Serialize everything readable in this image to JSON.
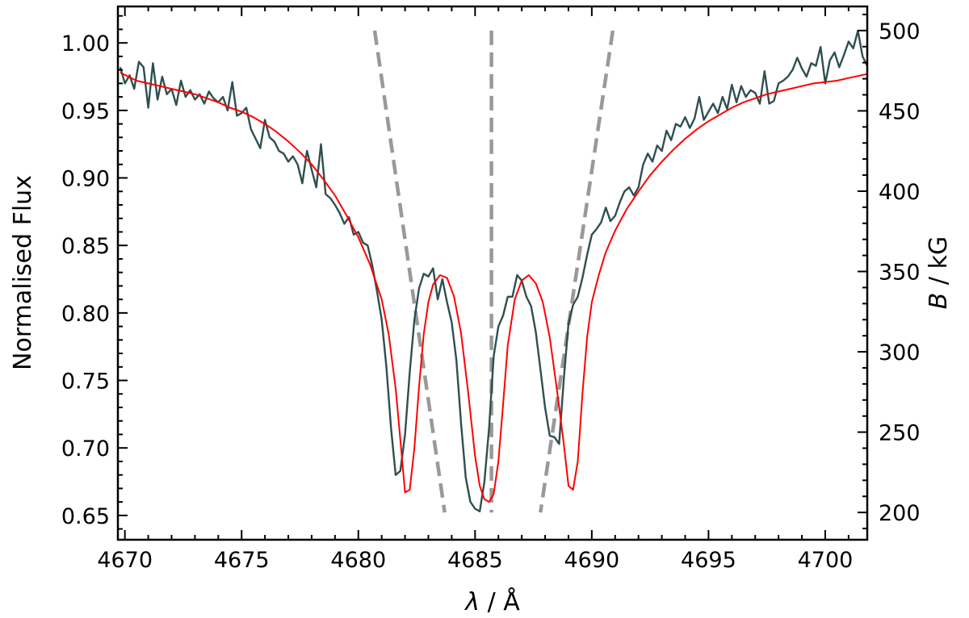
{
  "chart_data": {
    "type": "line",
    "xlabel": "λ / Å",
    "ylabel": "Normalised Flux",
    "y2label": "B / kG",
    "xlim": [
      4669.7,
      4701.8
    ],
    "ylim": [
      0.632,
      1.027
    ],
    "y2lim": [
      183,
      515
    ],
    "xticks": [
      "4670",
      "4675",
      "4680",
      "4685",
      "4690",
      "4695",
      "4700"
    ],
    "yticks": [
      "0.65",
      "0.70",
      "0.75",
      "0.80",
      "0.85",
      "0.90",
      "0.95",
      "1.00"
    ],
    "y2ticks": [
      "200",
      "250",
      "300",
      "350",
      "400",
      "450",
      "500"
    ],
    "grid": false,
    "colors": {
      "observed": "#2f4f4f",
      "model": "#ff0000",
      "field": "#999999"
    },
    "series": [
      {
        "kind": "observed",
        "axis": "left",
        "x": [
          4669.8,
          4670.0,
          4670.2,
          4670.4,
          4670.6,
          4670.8,
          4671.0,
          4671.2,
          4671.4,
          4671.6,
          4671.8,
          4672.0,
          4672.2,
          4672.4,
          4672.6,
          4672.8,
          4673.0,
          4673.2,
          4673.4,
          4673.6,
          4673.8,
          4674.0,
          4674.2,
          4674.4,
          4674.6,
          4674.8,
          4675.0,
          4675.2,
          4675.4,
          4675.6,
          4675.8,
          4676.0,
          4676.2,
          4676.4,
          4676.6,
          4676.8,
          4677.0,
          4677.2,
          4677.4,
          4677.6,
          4677.8,
          4678.0,
          4678.2,
          4678.4,
          4678.6,
          4678.8,
          4679.0,
          4679.2,
          4679.4,
          4679.6,
          4679.8,
          4680.0,
          4680.2,
          4680.4,
          4680.6,
          4680.8,
          4681.0,
          4681.2,
          4681.4,
          4681.6,
          4681.8,
          4682.0,
          4682.2,
          4682.4,
          4682.6,
          4682.8,
          4683.0,
          4683.2,
          4683.4,
          4683.6,
          4683.8,
          4684.0,
          4684.2,
          4684.4,
          4684.6,
          4684.8,
          4685.0,
          4685.2,
          4685.4,
          4685.6,
          4685.8,
          4686.0,
          4686.2,
          4686.4,
          4686.6,
          4686.8,
          4687.0,
          4687.2,
          4687.4,
          4687.6,
          4687.8,
          4688.0,
          4688.2,
          4688.4,
          4688.6,
          4688.8,
          4689.0,
          4689.2,
          4689.4,
          4689.6,
          4689.8,
          4690.0,
          4690.2,
          4690.4,
          4690.6,
          4690.8,
          4691.0,
          4691.2,
          4691.4,
          4691.6,
          4691.8,
          4692.0,
          4692.2,
          4692.4,
          4692.6,
          4692.8,
          4693.0,
          4693.2,
          4693.4,
          4693.6,
          4693.8,
          4694.0,
          4694.2,
          4694.4,
          4694.6,
          4694.8,
          4695.0,
          4695.2,
          4695.4,
          4695.6,
          4695.8,
          4696.0,
          4696.2,
          4696.4,
          4696.6,
          4696.8,
          4697.0,
          4697.2,
          4697.4,
          4697.6,
          4697.8,
          4698.0,
          4698.2,
          4698.4,
          4698.6,
          4698.8,
          4699.0,
          4699.2,
          4699.4,
          4699.6,
          4699.8,
          4700.0,
          4700.2,
          4700.4,
          4700.6,
          4700.8,
          4701.0,
          4701.2,
          4701.4,
          4701.6,
          4701.8
        ],
        "y": [
          0.982,
          0.97,
          0.976,
          0.966,
          0.986,
          0.982,
          0.952,
          0.985,
          0.958,
          0.975,
          0.962,
          0.966,
          0.954,
          0.972,
          0.96,
          0.965,
          0.958,
          0.962,
          0.955,
          0.964,
          0.959,
          0.956,
          0.96,
          0.95,
          0.971,
          0.946,
          0.948,
          0.952,
          0.936,
          0.929,
          0.922,
          0.943,
          0.93,
          0.927,
          0.92,
          0.918,
          0.912,
          0.916,
          0.91,
          0.896,
          0.92,
          0.906,
          0.893,
          0.925,
          0.888,
          0.885,
          0.88,
          0.874,
          0.866,
          0.871,
          0.858,
          0.86,
          0.852,
          0.85,
          0.835,
          0.816,
          0.795,
          0.76,
          0.715,
          0.68,
          0.683,
          0.71,
          0.756,
          0.795,
          0.818,
          0.829,
          0.827,
          0.833,
          0.81,
          0.825,
          0.808,
          0.793,
          0.765,
          0.718,
          0.678,
          0.66,
          0.655,
          0.653,
          0.675,
          0.715,
          0.768,
          0.79,
          0.798,
          0.812,
          0.812,
          0.828,
          0.824,
          0.812,
          0.805,
          0.786,
          0.758,
          0.73,
          0.709,
          0.708,
          0.703,
          0.751,
          0.792,
          0.806,
          0.812,
          0.826,
          0.843,
          0.858,
          0.862,
          0.867,
          0.878,
          0.868,
          0.872,
          0.882,
          0.89,
          0.893,
          0.887,
          0.893,
          0.91,
          0.918,
          0.912,
          0.924,
          0.92,
          0.935,
          0.928,
          0.94,
          0.938,
          0.945,
          0.937,
          0.944,
          0.96,
          0.943,
          0.949,
          0.955,
          0.948,
          0.96,
          0.951,
          0.969,
          0.956,
          0.968,
          0.96,
          0.965,
          0.963,
          0.955,
          0.979,
          0.955,
          0.957,
          0.97,
          0.972,
          0.975,
          0.98,
          0.989,
          0.981,
          0.975,
          0.985,
          0.983,
          0.997,
          0.97,
          0.987,
          0.993,
          0.982,
          0.991,
          1.001,
          0.996,
          1.009,
          0.99,
          0.983
        ]
      },
      {
        "kind": "model",
        "axis": "left",
        "x": [
          4669.8,
          4670.5,
          4671.0,
          4671.5,
          4672.0,
          4672.5,
          4673.0,
          4673.5,
          4674.0,
          4674.5,
          4675.0,
          4675.5,
          4676.0,
          4676.5,
          4677.0,
          4677.5,
          4678.0,
          4678.5,
          4679.0,
          4679.5,
          4680.0,
          4680.5,
          4681.0,
          4681.3,
          4681.6,
          4681.8,
          4682.0,
          4682.2,
          4682.4,
          4682.6,
          4682.8,
          4683.0,
          4683.2,
          4683.5,
          4683.8,
          4684.1,
          4684.4,
          4684.7,
          4685.0,
          4685.2,
          4685.4,
          4685.6,
          4685.8,
          4686.0,
          4686.2,
          4686.4,
          4686.7,
          4687.0,
          4687.3,
          4687.6,
          4687.9,
          4688.2,
          4688.5,
          4688.8,
          4689.0,
          4689.2,
          4689.4,
          4689.6,
          4689.8,
          4690.0,
          4690.3,
          4690.6,
          4691.0,
          4691.5,
          4692.0,
          4692.5,
          4693.0,
          4693.5,
          4694.0,
          4694.5,
          4695.0,
          4695.5,
          4696.0,
          4696.5,
          4697.0,
          4697.5,
          4698.0,
          4698.5,
          4699.0,
          4699.5,
          4700.0,
          4700.5,
          4701.0,
          4701.8
        ],
        "y": [
          0.978,
          0.972,
          0.97,
          0.968,
          0.966,
          0.964,
          0.962,
          0.959,
          0.956,
          0.952,
          0.949,
          0.945,
          0.94,
          0.934,
          0.927,
          0.919,
          0.91,
          0.899,
          0.887,
          0.872,
          0.856,
          0.836,
          0.81,
          0.784,
          0.744,
          0.706,
          0.667,
          0.669,
          0.7,
          0.745,
          0.784,
          0.808,
          0.821,
          0.828,
          0.826,
          0.812,
          0.785,
          0.742,
          0.694,
          0.672,
          0.662,
          0.66,
          0.666,
          0.69,
          0.732,
          0.776,
          0.81,
          0.824,
          0.828,
          0.822,
          0.808,
          0.782,
          0.744,
          0.703,
          0.672,
          0.669,
          0.69,
          0.74,
          0.782,
          0.808,
          0.828,
          0.845,
          0.861,
          0.877,
          0.89,
          0.902,
          0.912,
          0.921,
          0.929,
          0.936,
          0.942,
          0.947,
          0.952,
          0.956,
          0.959,
          0.962,
          0.964,
          0.966,
          0.968,
          0.97,
          0.971,
          0.972,
          0.974,
          0.977
        ]
      }
    ],
    "field_lines": [
      {
        "axis": "right",
        "x": [
          4680.7,
          4683.7
        ],
        "B": [
          500,
          200
        ]
      },
      {
        "axis": "right",
        "x": [
          4685.7,
          4685.7
        ],
        "B": [
          500,
          200
        ]
      },
      {
        "axis": "right",
        "x": [
          4690.9,
          4687.8
        ],
        "B": [
          500,
          200
        ]
      }
    ]
  }
}
